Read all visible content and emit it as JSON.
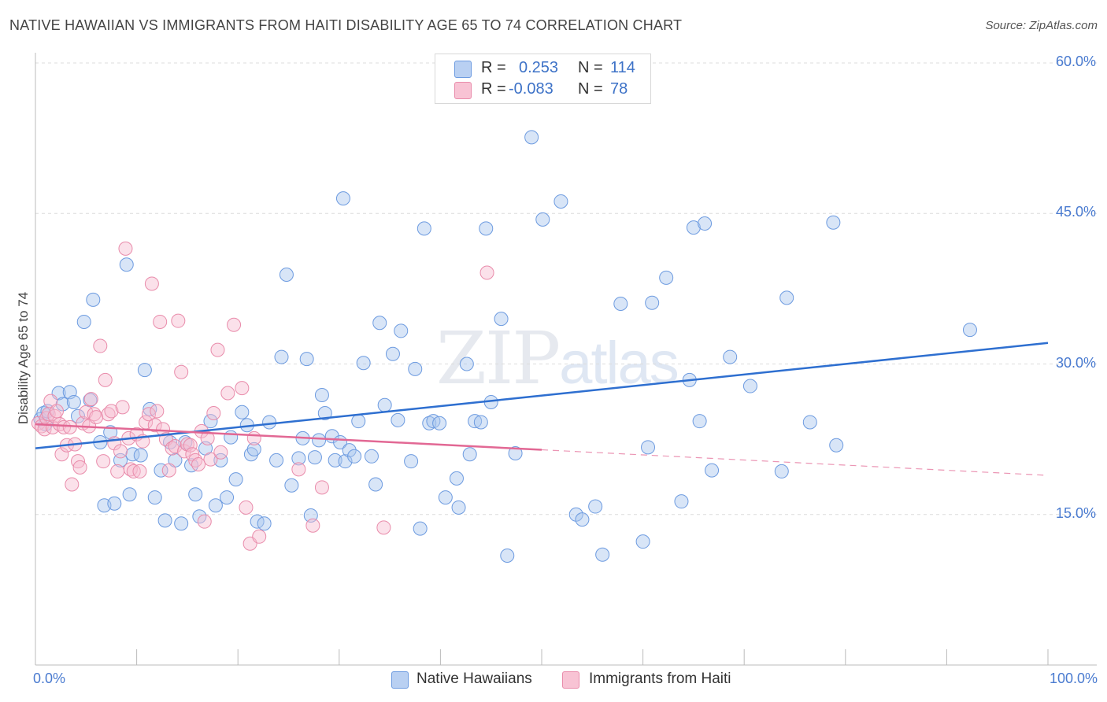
{
  "title": "NATIVE HAWAIIAN VS IMMIGRANTS FROM HAITI DISABILITY AGE 65 TO 74 CORRELATION CHART",
  "source": "Source: ZipAtlas.com",
  "watermark": {
    "zip": "ZIP",
    "atlas": "atlas"
  },
  "stats": {
    "r_label": "R =",
    "n_label": "N =",
    "rows": [
      {
        "series": "Native Hawaiians",
        "r": "0.253",
        "n": "114"
      },
      {
        "series": "Immigrants from Haiti",
        "r": "-0.083",
        "n": "78"
      }
    ]
  },
  "colors": {
    "blue_fill": "#a9c6ee",
    "blue_stroke": "#6d9be0",
    "blue_line": "#2e6fd0",
    "pink_fill": "#f6bcd0",
    "pink_stroke": "#e98cab",
    "pink_line": "#e26894",
    "axis_text": "#4a7bd0",
    "grid": "#dcdcdc"
  },
  "chart_data": {
    "type": "scatter",
    "title": "NATIVE HAWAIIAN VS IMMIGRANTS FROM HAITI DISABILITY AGE 65 TO 74 CORRELATION CHART",
    "xlabel": "",
    "ylabel": "Disability Age 65 to 74",
    "xlim": [
      0,
      100
    ],
    "ylim": [
      0,
      62
    ],
    "x_tick_labels": [
      "0.0%",
      "100.0%"
    ],
    "y_ticks": [
      15,
      30,
      45,
      60
    ],
    "y_tick_labels": [
      "15.0%",
      "30.0%",
      "45.0%",
      "60.0%"
    ],
    "legend": [
      "Native Hawaiians",
      "Immigrants from Haiti"
    ],
    "series": [
      {
        "name": "Native Hawaiians",
        "r": 0.253,
        "n": 114,
        "trend": {
          "x": [
            0,
            100
          ],
          "y": [
            21.6,
            32.1
          ],
          "dashed_from": null
        },
        "points": [
          [
            0.5,
            24.5
          ],
          [
            0.8,
            25.1
          ],
          [
            1.0,
            24.0
          ],
          [
            1.2,
            25.3
          ],
          [
            2.3,
            27.1
          ],
          [
            2.7,
            26.0
          ],
          [
            3.4,
            27.2
          ],
          [
            3.8,
            26.2
          ],
          [
            4.2,
            24.8
          ],
          [
            4.8,
            34.2
          ],
          [
            5.4,
            26.4
          ],
          [
            5.7,
            36.4
          ],
          [
            6.4,
            22.2
          ],
          [
            6.8,
            15.9
          ],
          [
            7.4,
            23.2
          ],
          [
            7.8,
            16.1
          ],
          [
            8.4,
            20.4
          ],
          [
            9.0,
            39.9
          ],
          [
            9.3,
            17.0
          ],
          [
            9.6,
            21.0
          ],
          [
            10.4,
            20.9
          ],
          [
            10.8,
            29.4
          ],
          [
            11.3,
            25.5
          ],
          [
            11.8,
            16.7
          ],
          [
            12.4,
            19.4
          ],
          [
            12.8,
            14.4
          ],
          [
            13.3,
            22.2
          ],
          [
            13.8,
            20.4
          ],
          [
            14.4,
            14.1
          ],
          [
            14.8,
            22.2
          ],
          [
            15.4,
            19.9
          ],
          [
            15.8,
            17.0
          ],
          [
            16.2,
            14.8
          ],
          [
            16.8,
            21.6
          ],
          [
            17.3,
            24.3
          ],
          [
            17.8,
            15.9
          ],
          [
            18.3,
            20.4
          ],
          [
            18.9,
            16.7
          ],
          [
            19.3,
            22.7
          ],
          [
            19.8,
            18.5
          ],
          [
            20.4,
            25.2
          ],
          [
            20.9,
            23.9
          ],
          [
            21.3,
            21.0
          ],
          [
            21.6,
            21.5
          ],
          [
            21.9,
            14.3
          ],
          [
            22.6,
            14.1
          ],
          [
            23.1,
            24.2
          ],
          [
            23.8,
            20.4
          ],
          [
            24.3,
            30.7
          ],
          [
            24.8,
            38.9
          ],
          [
            25.3,
            17.9
          ],
          [
            26.0,
            20.6
          ],
          [
            26.4,
            22.6
          ],
          [
            26.8,
            30.5
          ],
          [
            27.2,
            14.9
          ],
          [
            27.6,
            20.7
          ],
          [
            28.0,
            22.4
          ],
          [
            28.3,
            26.9
          ],
          [
            28.6,
            25.1
          ],
          [
            29.3,
            22.8
          ],
          [
            29.6,
            20.4
          ],
          [
            30.1,
            22.2
          ],
          [
            30.6,
            20.3
          ],
          [
            31.0,
            21.4
          ],
          [
            31.5,
            20.8
          ],
          [
            31.9,
            24.3
          ],
          [
            32.4,
            30.1
          ],
          [
            33.2,
            20.8
          ],
          [
            33.6,
            18.0
          ],
          [
            34.0,
            34.1
          ],
          [
            34.5,
            25.9
          ],
          [
            35.3,
            31.0
          ],
          [
            35.8,
            24.4
          ],
          [
            36.1,
            33.3
          ],
          [
            37.1,
            20.3
          ],
          [
            37.5,
            29.5
          ],
          [
            38.0,
            13.6
          ],
          [
            38.4,
            43.5
          ],
          [
            38.9,
            24.1
          ],
          [
            39.3,
            24.3
          ],
          [
            39.9,
            24.1
          ],
          [
            40.5,
            16.7
          ],
          [
            41.6,
            18.6
          ],
          [
            41.8,
            15.7
          ],
          [
            42.6,
            30.0
          ],
          [
            42.9,
            21.0
          ],
          [
            43.4,
            24.3
          ],
          [
            44.0,
            24.2
          ],
          [
            44.5,
            43.5
          ],
          [
            45.0,
            26.2
          ],
          [
            46.0,
            34.5
          ],
          [
            46.6,
            10.9
          ],
          [
            47.4,
            21.1
          ],
          [
            49.0,
            52.6
          ],
          [
            50.1,
            44.4
          ],
          [
            51.9,
            46.2
          ],
          [
            53.4,
            15.0
          ],
          [
            54.0,
            14.5
          ],
          [
            55.3,
            15.8
          ],
          [
            56.0,
            11.0
          ],
          [
            57.8,
            36.0
          ],
          [
            60.0,
            12.3
          ],
          [
            60.5,
            21.7
          ],
          [
            60.9,
            36.1
          ],
          [
            62.3,
            38.6
          ],
          [
            63.8,
            16.3
          ],
          [
            64.6,
            28.4
          ],
          [
            65.0,
            43.6
          ],
          [
            65.6,
            24.3
          ],
          [
            66.1,
            44.0
          ],
          [
            66.8,
            19.4
          ],
          [
            68.6,
            30.7
          ],
          [
            70.6,
            27.8
          ],
          [
            73.7,
            19.3
          ],
          [
            74.2,
            36.6
          ],
          [
            76.5,
            24.2
          ],
          [
            78.8,
            44.1
          ],
          [
            79.1,
            21.9
          ],
          [
            92.3,
            33.4
          ],
          [
            30.4,
            46.5
          ]
        ]
      },
      {
        "name": "Immigrants from Haiti",
        "r": -0.083,
        "n": 78,
        "trend": {
          "x": [
            0,
            100
          ],
          "y": [
            24.0,
            18.9
          ],
          "dashed_from": 50
        },
        "points": [
          [
            0.3,
            24.1
          ],
          [
            0.6,
            23.8
          ],
          [
            0.9,
            23.5
          ],
          [
            1.1,
            24.6
          ],
          [
            1.3,
            25.0
          ],
          [
            1.5,
            26.3
          ],
          [
            1.7,
            23.7
          ],
          [
            1.9,
            24.8
          ],
          [
            2.1,
            25.3
          ],
          [
            2.4,
            24.0
          ],
          [
            2.6,
            21.0
          ],
          [
            2.8,
            23.7
          ],
          [
            3.1,
            21.9
          ],
          [
            3.4,
            23.7
          ],
          [
            3.6,
            18.0
          ],
          [
            3.9,
            22.0
          ],
          [
            4.2,
            20.3
          ],
          [
            4.4,
            19.7
          ],
          [
            4.7,
            24.1
          ],
          [
            5.0,
            25.2
          ],
          [
            5.3,
            23.8
          ],
          [
            5.5,
            26.5
          ],
          [
            5.8,
            25.0
          ],
          [
            6.0,
            24.7
          ],
          [
            6.4,
            31.8
          ],
          [
            6.7,
            20.3
          ],
          [
            6.9,
            28.4
          ],
          [
            7.2,
            25.0
          ],
          [
            7.5,
            25.3
          ],
          [
            7.8,
            22.1
          ],
          [
            8.1,
            19.3
          ],
          [
            8.4,
            21.3
          ],
          [
            8.6,
            25.7
          ],
          [
            8.9,
            41.5
          ],
          [
            9.2,
            22.6
          ],
          [
            9.4,
            19.5
          ],
          [
            9.7,
            19.3
          ],
          [
            10.0,
            23.0
          ],
          [
            10.3,
            19.3
          ],
          [
            10.6,
            22.3
          ],
          [
            10.9,
            24.2
          ],
          [
            11.2,
            25.0
          ],
          [
            11.5,
            38.0
          ],
          [
            11.8,
            23.9
          ],
          [
            12.0,
            25.3
          ],
          [
            12.3,
            34.2
          ],
          [
            12.6,
            23.5
          ],
          [
            12.9,
            22.5
          ],
          [
            13.2,
            19.4
          ],
          [
            13.5,
            21.6
          ],
          [
            13.8,
            21.8
          ],
          [
            14.1,
            34.3
          ],
          [
            14.4,
            29.2
          ],
          [
            14.7,
            21.3
          ],
          [
            15.0,
            22.0
          ],
          [
            15.3,
            21.9
          ],
          [
            15.5,
            21.0
          ],
          [
            15.8,
            20.4
          ],
          [
            16.1,
            20.0
          ],
          [
            16.4,
            23.3
          ],
          [
            16.7,
            14.3
          ],
          [
            17.0,
            22.6
          ],
          [
            17.3,
            20.5
          ],
          [
            17.6,
            25.1
          ],
          [
            18.0,
            31.4
          ],
          [
            18.3,
            21.2
          ],
          [
            19.0,
            27.1
          ],
          [
            19.6,
            33.9
          ],
          [
            20.4,
            27.6
          ],
          [
            20.8,
            15.7
          ],
          [
            21.2,
            12.1
          ],
          [
            21.6,
            22.6
          ],
          [
            22.1,
            12.8
          ],
          [
            26.0,
            19.5
          ],
          [
            27.4,
            13.9
          ],
          [
            28.3,
            17.7
          ],
          [
            34.4,
            13.7
          ],
          [
            44.6,
            39.1
          ]
        ]
      }
    ]
  }
}
